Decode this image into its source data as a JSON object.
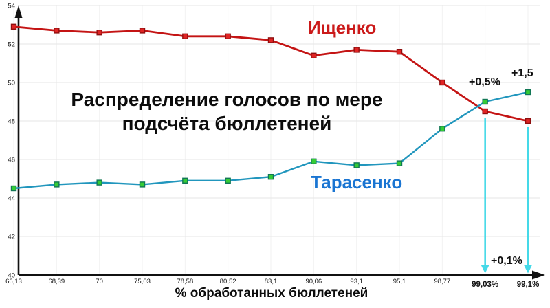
{
  "chart_data": {
    "type": "line",
    "title": "Распределение голосов по мере подсчёта бюллетеней",
    "title_lines": [
      "Распределение голосов по мере",
      "подсчёта бюллетеней"
    ],
    "xlabel": "% обработанных бюллетеней",
    "ylabel": "",
    "ylim": [
      40,
      54
    ],
    "y_ticks": [
      40,
      42,
      44,
      46,
      48,
      50,
      52,
      54
    ],
    "grid": true,
    "legend_position": "inline-labels",
    "categories": [
      "66,13",
      "68,39",
      "70",
      "75,03",
      "78,58",
      "80,52",
      "83,1",
      "90,06",
      "93,1",
      "95,1",
      "98,77",
      "99,03%",
      "99,1%"
    ],
    "emphasized_categories": [
      "99,03%",
      "99,1%"
    ],
    "series": [
      {
        "name": "Ищенко",
        "color": "#c41414",
        "marker_fill": "#e02424",
        "marker_stroke": "#8f0f0f",
        "values": [
          52.9,
          52.7,
          52.6,
          52.7,
          52.4,
          52.4,
          52.2,
          51.4,
          51.7,
          51.6,
          50.0,
          48.5,
          48.0
        ]
      },
      {
        "name": "Тарасенко",
        "color": "#2196bd",
        "marker_fill": "#35cc35",
        "marker_stroke": "#117755",
        "values": [
          44.5,
          44.7,
          44.8,
          44.7,
          44.9,
          44.9,
          45.1,
          45.9,
          45.7,
          45.8,
          47.6,
          49.0,
          49.5
        ]
      }
    ],
    "annotations": [
      {
        "text": "+0,5%",
        "at_category": "99,03%"
      },
      {
        "text": "+1,5",
        "at_category": "99,1%"
      },
      {
        "text": "+0,1%",
        "at_category": "between arrows bottom"
      }
    ],
    "arrows": [
      {
        "at_index": 11
      },
      {
        "at_index": 12
      }
    ],
    "arrow_color": "#45d9e8",
    "axis_color": "#111111",
    "grid_color_h": "#e6e6e6",
    "grid_color_v": "#f2f2f2"
  }
}
